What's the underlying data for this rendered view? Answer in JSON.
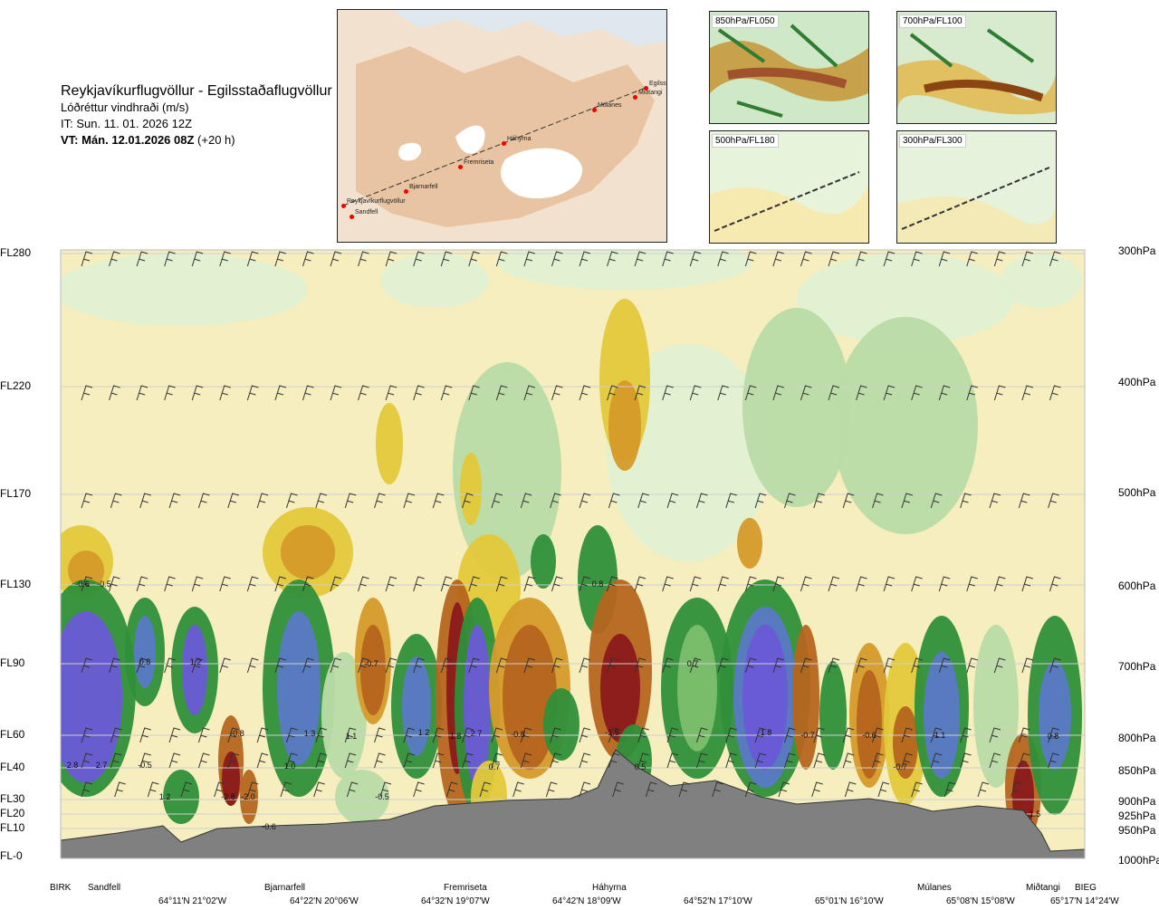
{
  "header": {
    "title": "Reykjavíkurflugvöllur - Egilsstaðaflugvöllur",
    "subtitle": "Lóðréttur vindhraði (m/s)",
    "issue_time": "IT: Sun. 11. 01. 2026 12Z",
    "valid_time": "VT: Mán. 12.01.2026 08Z",
    "valid_offset": "(+20 h)"
  },
  "route_map": {
    "points": [
      "Reykjavíkurflugvöllur",
      "Sandfell",
      "Bjarnarfell",
      "Fremriseta",
      "Háhyrna",
      "Múlanes",
      "Miðtangi",
      "Egilsstaðir"
    ]
  },
  "level_maps": [
    {
      "label": "850hPa/FL050"
    },
    {
      "label": "700hPa/FL100"
    },
    {
      "label": "500hPa/FL180"
    },
    {
      "label": "300hPa/FL300"
    }
  ],
  "chart_data": {
    "type": "heatmap",
    "title": "Reykjavíkurflugvöllur - Egilsstaðaflugvöllur",
    "quantity": "Lóðréttur vindhraði (m/s)",
    "flight_levels": [
      "FL280",
      "FL220",
      "FL170",
      "FL130",
      "FL90",
      "FL60",
      "FL40",
      "FL30",
      "FL20",
      "FL10",
      "FL-0"
    ],
    "pressure_levels": [
      "300hPa",
      "400hPa",
      "500hPa",
      "600hPa",
      "700hPa",
      "800hPa",
      "850hPa",
      "900hPa",
      "925hPa",
      "950hPa",
      "1000hPa"
    ],
    "locations": [
      "BIRK",
      "Sandfell",
      "Bjarnarfell",
      "Fremriseta",
      "Háhyrna",
      "Múlanes",
      "Miðtangi",
      "BIEG"
    ],
    "coordinates": [
      "64°11'N 21°02'W",
      "64°22'N 20°06'W",
      "64°32'N 19°07'W",
      "64°42'N 18°09'W",
      "64°52'N 17°10'W",
      "65°01'N 16°10'W",
      "65°08'N 15°08'W",
      "65°17'N 14°24'W"
    ],
    "value_labels": [
      "-0.6",
      "-0.5",
      "2.8",
      "2.7",
      "-0.5",
      "1.2",
      "0.8",
      "1.2",
      "-0.8",
      "-2.8",
      "-2.0",
      "-0.6",
      "1.3",
      "1.0",
      "1.1",
      "-0.7",
      "-0.5",
      "1.2",
      "1.8",
      "2.7",
      "-0.8",
      "0.7",
      "0.8",
      "-1.5",
      "0.5",
      "0.7",
      "1.8",
      "-0.7",
      "-0.6",
      "-0.7",
      "1.1",
      "0.8",
      "1.5"
    ]
  }
}
